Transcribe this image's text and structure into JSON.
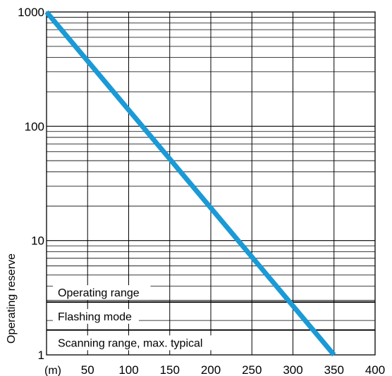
{
  "chart_data": {
    "type": "line",
    "title": "",
    "xlabel": "",
    "x_unit_label": "(m)",
    "ylabel": "Operating reserve",
    "y_scale": "log",
    "xlim": [
      0,
      400
    ],
    "ylim": [
      1,
      1000
    ],
    "x_ticks": [
      50,
      100,
      150,
      200,
      250,
      300,
      350,
      400
    ],
    "y_ticks": [
      1,
      10,
      100,
      1000
    ],
    "y_tick_labels": [
      "1",
      "10",
      "100",
      "1000"
    ],
    "grid": true,
    "series": [
      {
        "color": "#1a9ad6",
        "x": [
          0,
          350
        ],
        "y": [
          1000,
          1
        ]
      }
    ],
    "threshold_lines": [
      1.65,
      2.9
    ],
    "bands": [
      {
        "label": "Scanning range, max. typical",
        "from": 1,
        "to": 1.65
      },
      {
        "label": "Flashing mode",
        "from": 1.65,
        "to": 2.9
      },
      {
        "label": "Operating range",
        "from": 2.9,
        "to": 1000
      }
    ],
    "colors": {
      "line": "#1a9ad6",
      "grid": "#000000"
    }
  }
}
